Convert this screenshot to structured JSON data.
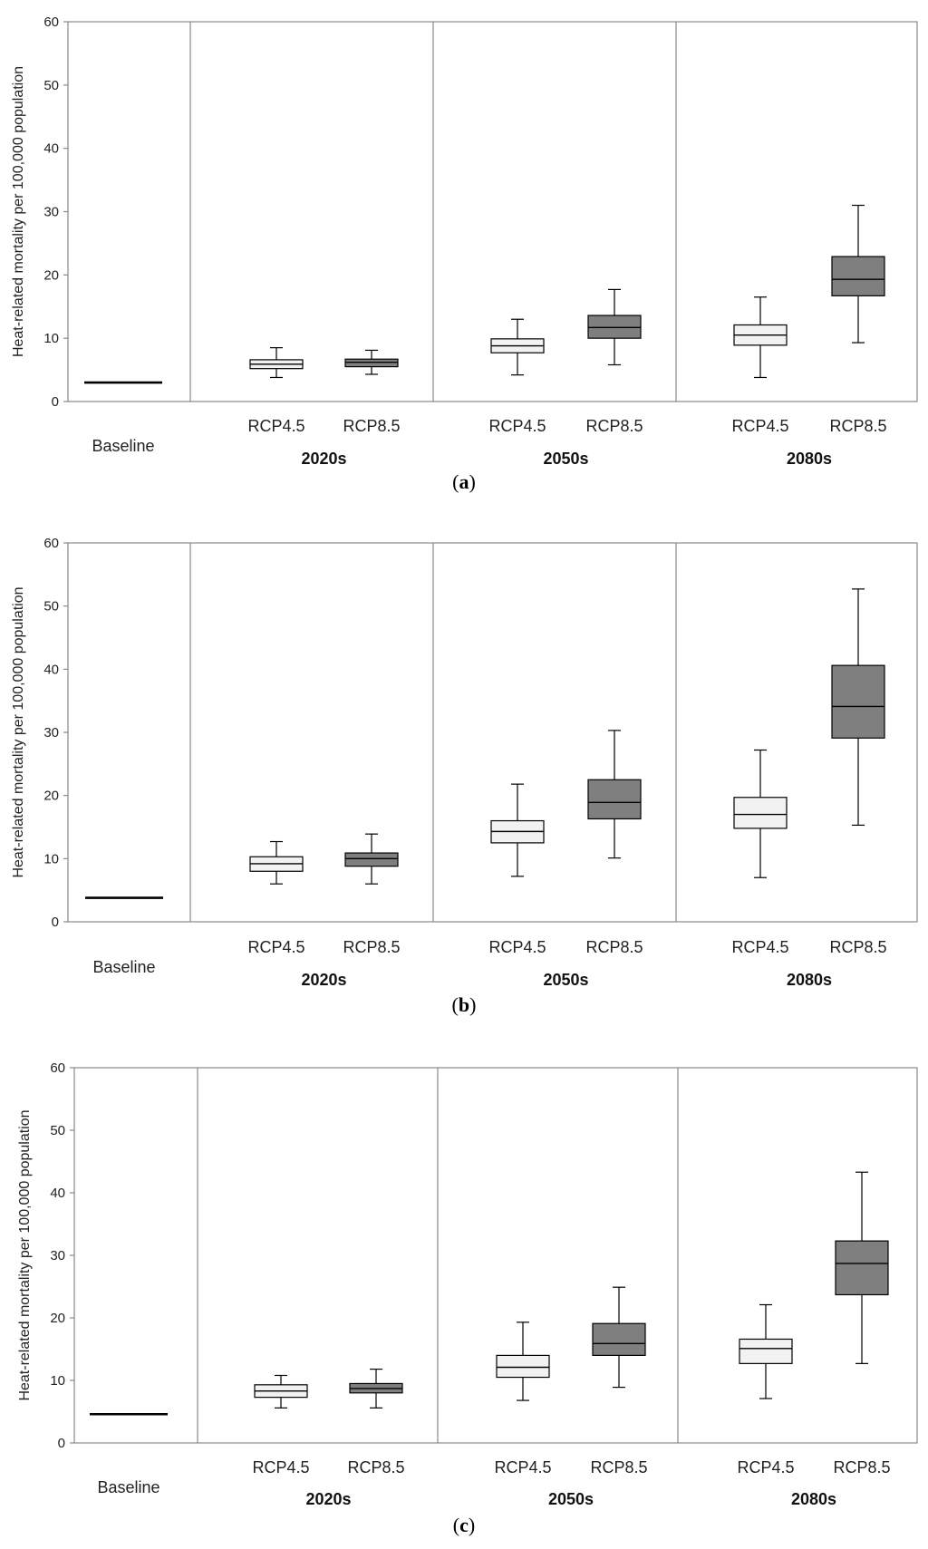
{
  "figure": {
    "background": "#ffffff",
    "frame_color": "#888888"
  },
  "colors": {
    "light_box": "#f2f2f2",
    "dark_box": "#7f7f7f",
    "stroke": "#000000"
  },
  "chart_data": [
    {
      "type": "boxplot",
      "panel_label": "a",
      "ylabel": "Heat-related mortality per 100,000 population",
      "ylim": [
        0,
        60
      ],
      "yticks": [
        "0",
        "10",
        "20",
        "30",
        "40",
        "50",
        "60"
      ],
      "baseline": {
        "label": "Baseline",
        "value": 3.0
      },
      "periods": [
        {
          "name": "2020s",
          "boxes": [
            {
              "scenario": "RCP4.5",
              "shade": "light",
              "min": 3.8,
              "q1": 5.2,
              "median": 5.9,
              "q3": 6.6,
              "max": 8.5
            },
            {
              "scenario": "RCP8.5",
              "shade": "dark",
              "min": 4.3,
              "q1": 5.5,
              "median": 6.2,
              "q3": 6.7,
              "max": 8.1
            }
          ]
        },
        {
          "name": "2050s",
          "boxes": [
            {
              "scenario": "RCP4.5",
              "shade": "light",
              "min": 4.2,
              "q1": 7.7,
              "median": 8.8,
              "q3": 9.9,
              "max": 13.0
            },
            {
              "scenario": "RCP8.5",
              "shade": "dark",
              "min": 5.8,
              "q1": 10.0,
              "median": 11.7,
              "q3": 13.6,
              "max": 17.7
            }
          ]
        },
        {
          "name": "2080s",
          "boxes": [
            {
              "scenario": "RCP4.5",
              "shade": "light",
              "min": 3.8,
              "q1": 8.9,
              "median": 10.5,
              "q3": 12.1,
              "max": 16.5
            },
            {
              "scenario": "RCP8.5",
              "shade": "dark",
              "min": 9.3,
              "q1": 16.7,
              "median": 19.3,
              "q3": 22.9,
              "max": 31.0
            }
          ]
        }
      ]
    },
    {
      "type": "boxplot",
      "panel_label": "b",
      "ylabel": "Heat-related mortality per 100,000 population",
      "ylim": [
        0,
        60
      ],
      "yticks": [
        "0",
        "10",
        "20",
        "30",
        "40",
        "50",
        "60"
      ],
      "baseline": {
        "label": "Baseline",
        "value": 3.8
      },
      "periods": [
        {
          "name": "2020s",
          "boxes": [
            {
              "scenario": "RCP4.5",
              "shade": "light",
              "min": 6.0,
              "q1": 8.0,
              "median": 9.2,
              "q3": 10.3,
              "max": 12.7
            },
            {
              "scenario": "RCP8.5",
              "shade": "dark",
              "min": 6.0,
              "q1": 8.8,
              "median": 10.0,
              "q3": 10.9,
              "max": 13.9
            }
          ]
        },
        {
          "name": "2050s",
          "boxes": [
            {
              "scenario": "RCP4.5",
              "shade": "light",
              "min": 7.2,
              "q1": 12.5,
              "median": 14.3,
              "q3": 16.0,
              "max": 21.8
            },
            {
              "scenario": "RCP8.5",
              "shade": "dark",
              "min": 10.1,
              "q1": 16.3,
              "median": 18.9,
              "q3": 22.5,
              "max": 30.3
            }
          ]
        },
        {
          "name": "2080s",
          "boxes": [
            {
              "scenario": "RCP4.5",
              "shade": "light",
              "min": 7.0,
              "q1": 14.8,
              "median": 17.0,
              "q3": 19.7,
              "max": 27.2
            },
            {
              "scenario": "RCP8.5",
              "shade": "dark",
              "min": 15.3,
              "q1": 29.1,
              "median": 34.1,
              "q3": 40.6,
              "max": 52.7
            }
          ]
        }
      ]
    },
    {
      "type": "boxplot",
      "panel_label": "c",
      "ylabel": "Heat-related mortality per 100,000 population",
      "ylim": [
        0,
        60
      ],
      "yticks": [
        "0",
        "10",
        "20",
        "30",
        "40",
        "50",
        "60"
      ],
      "baseline": {
        "label": "Baseline",
        "value": 4.6
      },
      "periods": [
        {
          "name": "2020s",
          "boxes": [
            {
              "scenario": "RCP4.5",
              "shade": "light",
              "min": 5.6,
              "q1": 7.3,
              "median": 8.3,
              "q3": 9.3,
              "max": 10.8
            },
            {
              "scenario": "RCP8.5",
              "shade": "dark",
              "min": 5.6,
              "q1": 8.0,
              "median": 8.7,
              "q3": 9.5,
              "max": 11.8
            }
          ]
        },
        {
          "name": "2050s",
          "boxes": [
            {
              "scenario": "RCP4.5",
              "shade": "light",
              "min": 6.8,
              "q1": 10.5,
              "median": 12.1,
              "q3": 14.0,
              "max": 19.3
            },
            {
              "scenario": "RCP8.5",
              "shade": "dark",
              "min": 8.9,
              "q1": 14.0,
              "median": 15.9,
              "q3": 19.1,
              "max": 24.9
            }
          ]
        },
        {
          "name": "2080s",
          "boxes": [
            {
              "scenario": "RCP4.5",
              "shade": "light",
              "min": 7.1,
              "q1": 12.7,
              "median": 15.1,
              "q3": 16.6,
              "max": 22.1
            },
            {
              "scenario": "RCP8.5",
              "shade": "dark",
              "min": 12.7,
              "q1": 23.7,
              "median": 28.7,
              "q3": 32.3,
              "max": 43.3
            }
          ]
        }
      ]
    }
  ]
}
